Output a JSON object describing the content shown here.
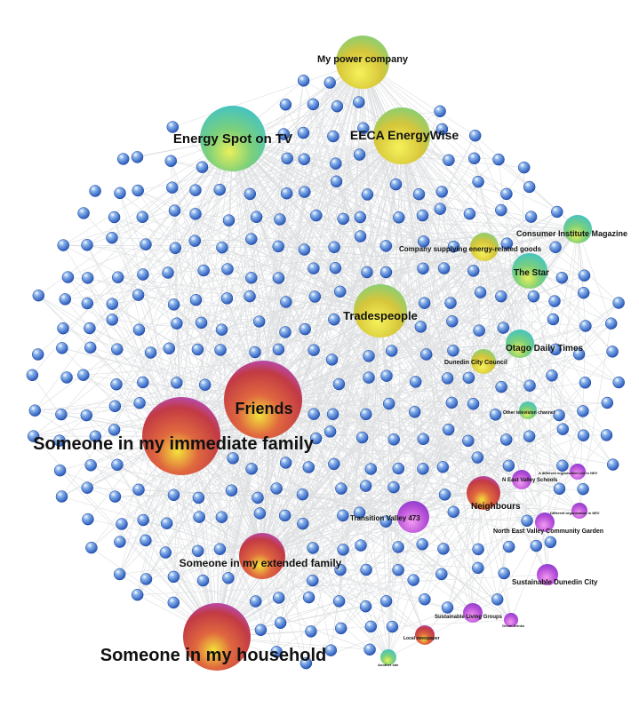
{
  "hubs": [
    {
      "id": "power",
      "label": "My power company",
      "color": "yellow"
    },
    {
      "id": "tv",
      "label": "Energy Spot on TV",
      "color": "green"
    },
    {
      "id": "eeca",
      "label": "EECA EnergyWise",
      "color": "yellow"
    },
    {
      "id": "consumer",
      "label": "Consumer Institute Magazine",
      "color": "green"
    },
    {
      "id": "company",
      "label": "Company supplying energy-related goods",
      "color": "yellow"
    },
    {
      "id": "star",
      "label": "The Star",
      "color": "green"
    },
    {
      "id": "trades",
      "label": "Tradespeople",
      "color": "yellow"
    },
    {
      "id": "odt",
      "label": "Otago Daily Times",
      "color": "green"
    },
    {
      "id": "dcc",
      "label": "Dunedin City Council",
      "color": "yellow"
    },
    {
      "id": "friends",
      "label": "Friends",
      "color": "red"
    },
    {
      "id": "other",
      "label": "Other television channel",
      "color": "green"
    },
    {
      "id": "family",
      "label": "Someone in my immediate family",
      "color": "red"
    },
    {
      "id": "nev1",
      "label": "A different organisation not in NEV",
      "color": "purple"
    },
    {
      "id": "schools",
      "label": "N East Valley Schools",
      "color": "purple"
    },
    {
      "id": "neighbours",
      "label": "Neighbours",
      "color": "red"
    },
    {
      "id": "nev2",
      "label": "Different organisation in NEV",
      "color": "purple"
    },
    {
      "id": "transition",
      "label": "Transition Valley 473",
      "color": "purple"
    },
    {
      "id": "garden",
      "label": "North East Valley Community Garden",
      "color": "purple"
    },
    {
      "id": "extended",
      "label": "Someone in my extended family",
      "color": "red"
    },
    {
      "id": "sdc",
      "label": "Sustainable Dunedin City",
      "color": "purple"
    },
    {
      "id": "slg",
      "label": "Sustainable Living Groups",
      "color": "purple"
    },
    {
      "id": "green",
      "label": "Green Drinks",
      "color": "purple"
    },
    {
      "id": "local",
      "label": "Local newspaper",
      "color": "red"
    },
    {
      "id": "household",
      "label": "Someone in my household",
      "color": "red"
    },
    {
      "id": "web",
      "label": "Another site",
      "color": "green"
    }
  ]
}
